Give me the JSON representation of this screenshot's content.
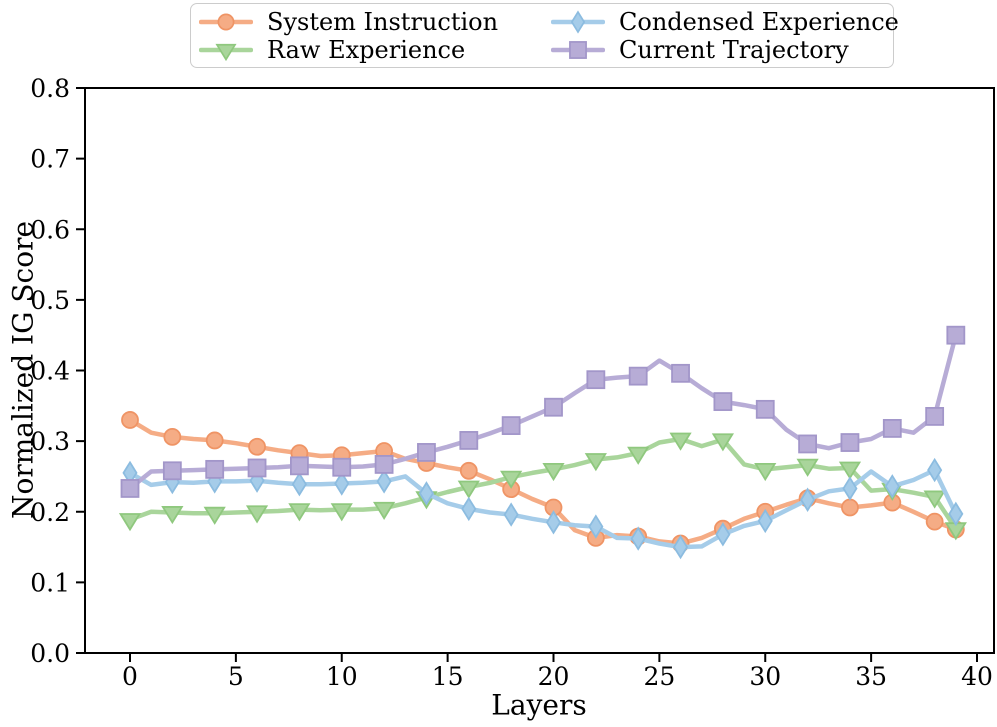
{
  "chart_data": {
    "type": "line",
    "title": "",
    "xlabel": "Layers",
    "ylabel": "Normalized IG Score",
    "xlim": [
      -2,
      41
    ],
    "ylim": [
      0.0,
      0.8
    ],
    "x_ticks": [
      0,
      5,
      10,
      15,
      20,
      25,
      30,
      35,
      40
    ],
    "y_ticks": [
      0.0,
      0.1,
      0.2,
      0.3,
      0.4,
      0.5,
      0.6,
      0.7,
      0.8
    ],
    "grid": false,
    "legend": {
      "position": "top-center-outside",
      "columns": 2,
      "border_color": "#cccccc"
    },
    "marker_every": 2,
    "marker_on_last_point": true,
    "x": [
      0,
      1,
      2,
      3,
      4,
      5,
      6,
      7,
      8,
      9,
      10,
      11,
      12,
      13,
      14,
      15,
      16,
      17,
      18,
      19,
      20,
      21,
      22,
      23,
      24,
      25,
      26,
      27,
      28,
      29,
      30,
      31,
      32,
      33,
      34,
      35,
      36,
      37,
      38,
      39
    ],
    "series": [
      {
        "name": "System Instruction",
        "marker": "circle",
        "color": "#F5AC85",
        "edge": "#EF9465",
        "values": [
          0.33,
          0.312,
          0.306,
          0.303,
          0.301,
          0.297,
          0.292,
          0.287,
          0.283,
          0.279,
          0.28,
          0.283,
          0.286,
          0.275,
          0.269,
          0.263,
          0.258,
          0.246,
          0.232,
          0.218,
          0.206,
          0.174,
          0.163,
          0.167,
          0.165,
          0.158,
          0.155,
          0.163,
          0.176,
          0.19,
          0.2,
          0.21,
          0.219,
          0.212,
          0.206,
          0.209,
          0.213,
          0.2,
          0.186,
          0.175
        ]
      },
      {
        "name": "Raw Experience",
        "marker": "triangle-down",
        "color": "#A9D59B",
        "edge": "#8FC87E",
        "values": [
          0.189,
          0.2,
          0.199,
          0.198,
          0.198,
          0.199,
          0.2,
          0.201,
          0.203,
          0.202,
          0.203,
          0.203,
          0.205,
          0.212,
          0.22,
          0.228,
          0.235,
          0.241,
          0.249,
          0.255,
          0.26,
          0.266,
          0.274,
          0.277,
          0.283,
          0.298,
          0.303,
          0.293,
          0.302,
          0.267,
          0.26,
          0.263,
          0.266,
          0.261,
          0.262,
          0.23,
          0.232,
          0.227,
          0.221,
          0.176
        ]
      },
      {
        "name": "Condensed Experience",
        "marker": "thin-diamond",
        "color": "#A5CCE9",
        "edge": "#8CBCE0",
        "values": [
          0.255,
          0.238,
          0.242,
          0.241,
          0.243,
          0.243,
          0.244,
          0.241,
          0.239,
          0.239,
          0.24,
          0.241,
          0.243,
          0.25,
          0.226,
          0.212,
          0.204,
          0.199,
          0.196,
          0.19,
          0.185,
          0.181,
          0.179,
          0.163,
          0.162,
          0.155,
          0.15,
          0.151,
          0.168,
          0.18,
          0.187,
          0.202,
          0.217,
          0.229,
          0.233,
          0.257,
          0.236,
          0.245,
          0.259,
          0.197
        ]
      },
      {
        "name": "Current Trajectory",
        "marker": "square",
        "color": "#B7ACD6",
        "edge": "#A296C9",
        "values": [
          0.233,
          0.257,
          0.258,
          0.259,
          0.26,
          0.261,
          0.262,
          0.263,
          0.265,
          0.264,
          0.263,
          0.264,
          0.267,
          0.275,
          0.284,
          0.292,
          0.301,
          0.311,
          0.322,
          0.335,
          0.348,
          0.368,
          0.387,
          0.39,
          0.392,
          0.414,
          0.396,
          0.375,
          0.356,
          0.351,
          0.345,
          0.316,
          0.296,
          0.29,
          0.298,
          0.303,
          0.318,
          0.312,
          0.335,
          0.45
        ]
      }
    ]
  }
}
